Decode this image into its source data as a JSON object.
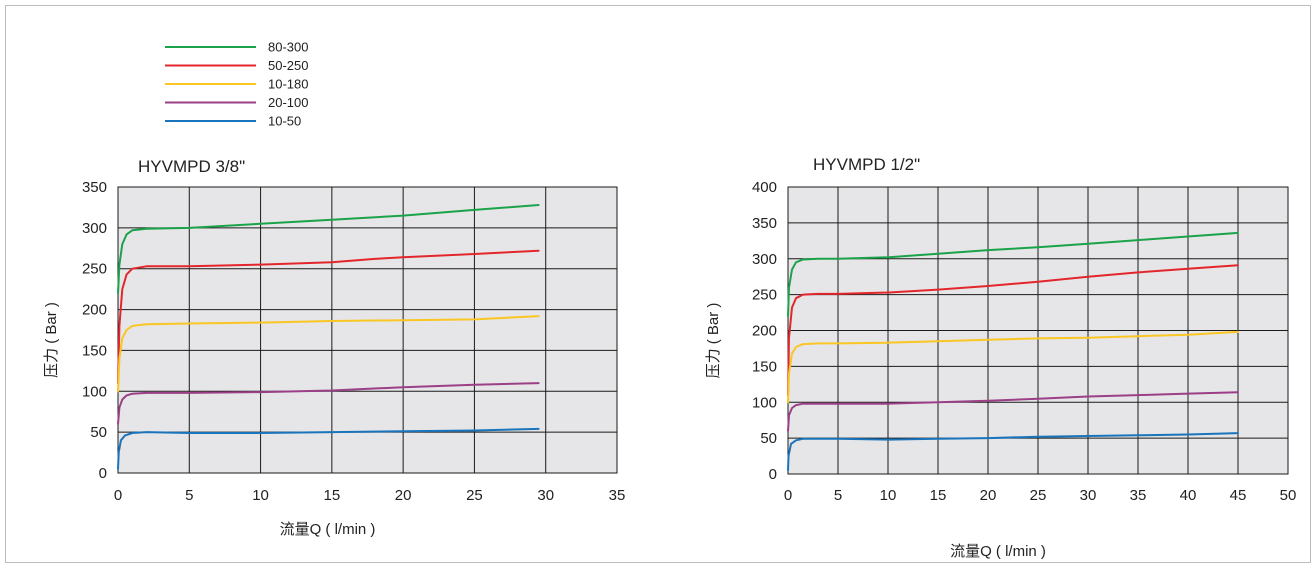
{
  "legend": [
    {
      "name": "80-300",
      "color": "#1aa34a"
    },
    {
      "name": "50-250",
      "color": "#e3262b"
    },
    {
      "name": "10-180",
      "color": "#f9c623"
    },
    {
      "name": "20-100",
      "color": "#9b3f87"
    },
    {
      "name": "10-50",
      "color": "#1a74bc"
    }
  ],
  "chart_data": [
    {
      "type": "line",
      "title": "HYVMPD 3/8\"",
      "xlabel": "流量Q ( l/min )",
      "ylabel": "压力 ( Bar )",
      "xlim": [
        0,
        35
      ],
      "ylim": [
        0,
        350
      ],
      "xticks": [
        0,
        5,
        10,
        15,
        20,
        25,
        30,
        35
      ],
      "yticks": [
        0,
        50,
        100,
        150,
        200,
        250,
        300,
        350
      ],
      "grid": true,
      "series": [
        {
          "name": "80-300",
          "color": "#1aa34a",
          "points": [
            [
              0,
              220
            ],
            [
              0.1,
              255
            ],
            [
              0.3,
              280
            ],
            [
              0.6,
              292
            ],
            [
              1,
              297
            ],
            [
              2,
              299
            ],
            [
              5,
              300
            ],
            [
              10,
              305
            ],
            [
              15,
              310
            ],
            [
              20,
              315
            ],
            [
              25,
              322
            ],
            [
              29.5,
              328
            ]
          ]
        },
        {
          "name": "50-250",
          "color": "#e3262b",
          "points": [
            [
              0,
              110
            ],
            [
              0.1,
              180
            ],
            [
              0.3,
              225
            ],
            [
              0.6,
              243
            ],
            [
              1,
              250
            ],
            [
              2,
              253
            ],
            [
              5,
              253
            ],
            [
              10,
              255
            ],
            [
              15,
              258
            ],
            [
              18,
              262
            ],
            [
              20,
              264
            ],
            [
              25,
              268
            ],
            [
              29.5,
              272
            ]
          ]
        },
        {
          "name": "10-180",
          "color": "#f9c623",
          "points": [
            [
              0,
              100
            ],
            [
              0.1,
              140
            ],
            [
              0.3,
              165
            ],
            [
              0.6,
              175
            ],
            [
              1,
              180
            ],
            [
              2,
              182
            ],
            [
              5,
              183
            ],
            [
              10,
              184
            ],
            [
              15,
              186
            ],
            [
              20,
              187
            ],
            [
              25,
              188
            ],
            [
              29.5,
              192
            ]
          ]
        },
        {
          "name": "20-100",
          "color": "#9b3f87",
          "points": [
            [
              0,
              60
            ],
            [
              0.1,
              80
            ],
            [
              0.3,
              90
            ],
            [
              0.6,
              95
            ],
            [
              1,
              97
            ],
            [
              2,
              98
            ],
            [
              5,
              98
            ],
            [
              10,
              99
            ],
            [
              15,
              101
            ],
            [
              20,
              105
            ],
            [
              25,
              108
            ],
            [
              29.5,
              110
            ]
          ]
        },
        {
          "name": "10-50",
          "color": "#1a74bc",
          "points": [
            [
              0,
              5
            ],
            [
              0.05,
              25
            ],
            [
              0.2,
              40
            ],
            [
              0.5,
              46
            ],
            [
              1,
              49
            ],
            [
              2,
              50
            ],
            [
              5,
              49
            ],
            [
              10,
              49
            ],
            [
              15,
              50
            ],
            [
              20,
              51
            ],
            [
              25,
              52
            ],
            [
              29.5,
              54
            ]
          ]
        }
      ]
    },
    {
      "type": "line",
      "title": "HYVMPD 1/2\"",
      "xlabel": "流量Q ( l/min )",
      "ylabel": "压力 ( Bar )",
      "xlim": [
        0,
        50
      ],
      "ylim": [
        0,
        400
      ],
      "xticks": [
        0,
        5,
        10,
        15,
        20,
        25,
        30,
        35,
        40,
        45,
        50
      ],
      "yticks": [
        0,
        50,
        100,
        150,
        200,
        250,
        300,
        350,
        400
      ],
      "grid": true,
      "series": [
        {
          "name": "80-300",
          "color": "#1aa34a",
          "points": [
            [
              0,
              220
            ],
            [
              0.1,
              260
            ],
            [
              0.4,
              285
            ],
            [
              0.8,
              295
            ],
            [
              1.5,
              299
            ],
            [
              3,
              300
            ],
            [
              5,
              300
            ],
            [
              10,
              302
            ],
            [
              15,
              307
            ],
            [
              20,
              312
            ],
            [
              25,
              316
            ],
            [
              30,
              321
            ],
            [
              35,
              326
            ],
            [
              40,
              331
            ],
            [
              45,
              336
            ]
          ]
        },
        {
          "name": "50-250",
          "color": "#e3262b",
          "points": [
            [
              0,
              110
            ],
            [
              0.1,
              190
            ],
            [
              0.4,
              232
            ],
            [
              0.8,
              245
            ],
            [
              1.5,
              250
            ],
            [
              3,
              251
            ],
            [
              5,
              251
            ],
            [
              10,
              253
            ],
            [
              15,
              257
            ],
            [
              20,
              262
            ],
            [
              25,
              268
            ],
            [
              30,
              275
            ],
            [
              35,
              281
            ],
            [
              40,
              286
            ],
            [
              45,
              291
            ]
          ]
        },
        {
          "name": "10-180",
          "color": "#f9c623",
          "points": [
            [
              0,
              100
            ],
            [
              0.1,
              140
            ],
            [
              0.4,
              168
            ],
            [
              0.8,
              177
            ],
            [
              1.5,
              181
            ],
            [
              3,
              182
            ],
            [
              5,
              182
            ],
            [
              10,
              183
            ],
            [
              15,
              185
            ],
            [
              20,
              187
            ],
            [
              25,
              189
            ],
            [
              30,
              190
            ],
            [
              35,
              192
            ],
            [
              40,
              194
            ],
            [
              45,
              198
            ]
          ]
        },
        {
          "name": "20-100",
          "color": "#9b3f87",
          "points": [
            [
              0,
              60
            ],
            [
              0.1,
              82
            ],
            [
              0.4,
              92
            ],
            [
              0.8,
              96
            ],
            [
              1.5,
              98
            ],
            [
              3,
              98
            ],
            [
              5,
              98
            ],
            [
              10,
              98
            ],
            [
              15,
              100
            ],
            [
              20,
              102
            ],
            [
              25,
              105
            ],
            [
              30,
              108
            ],
            [
              35,
              110
            ],
            [
              40,
              112
            ],
            [
              45,
              114
            ]
          ]
        },
        {
          "name": "10-50",
          "color": "#1a74bc",
          "points": [
            [
              0,
              5
            ],
            [
              0.05,
              25
            ],
            [
              0.3,
              42
            ],
            [
              0.8,
              47
            ],
            [
              1.5,
              49
            ],
            [
              3,
              49
            ],
            [
              5,
              49
            ],
            [
              10,
              48
            ],
            [
              15,
              49
            ],
            [
              20,
              50
            ],
            [
              25,
              52
            ],
            [
              30,
              53
            ],
            [
              35,
              54
            ],
            [
              40,
              55
            ],
            [
              45,
              57
            ]
          ]
        }
      ]
    }
  ]
}
